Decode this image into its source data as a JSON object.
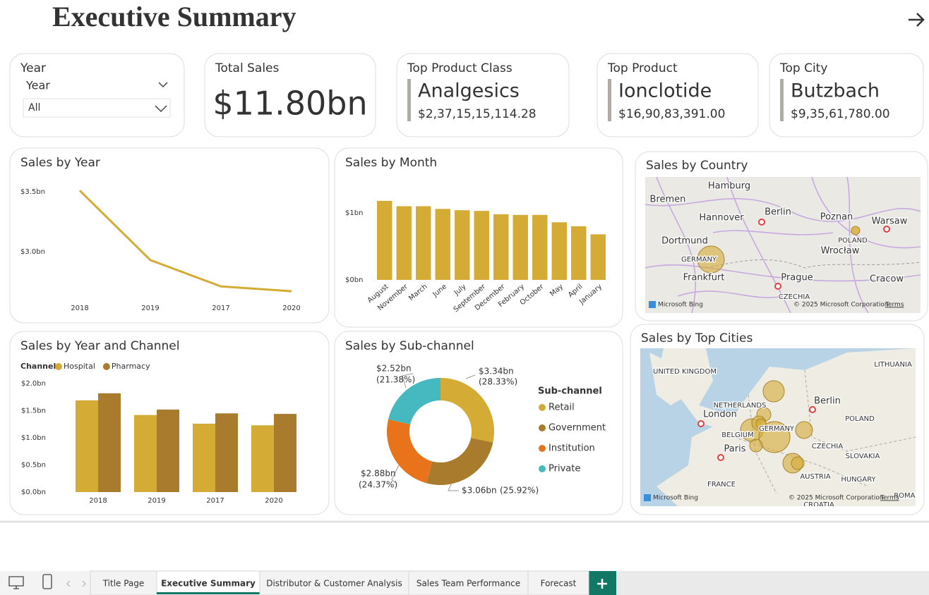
{
  "header": {
    "title": "Executive Summary"
  },
  "slicer": {
    "title": "Year",
    "dropdown_label": "Year",
    "value": "All"
  },
  "cards": [
    {
      "title": "Total Sales",
      "value": "$11.80bn"
    },
    {
      "title": "Top Product Class",
      "name": "Analgesics",
      "value": "$2,37,15,15,114.28"
    },
    {
      "title": "Top Product",
      "name": "Ionclotide",
      "value": "$16,90,83,391.00"
    },
    {
      "title": "Top City",
      "name": "Butzbach",
      "value": "$9,35,61,780.00"
    }
  ],
  "chart_data": [
    {
      "type": "line",
      "title": "Sales by Year",
      "categories": [
        "2018",
        "2019",
        "2017",
        "2020"
      ],
      "values": [
        3.51,
        2.93,
        2.71,
        2.67
      ],
      "color": "#d4ac35",
      "ylim": [
        2.6,
        3.55
      ],
      "yticks": [
        {
          "value": 3.0,
          "label": "$3.0bn"
        },
        {
          "value": 3.5,
          "label": "$3.5bn"
        }
      ]
    },
    {
      "type": "bar",
      "title": "Sales by Month",
      "categories": [
        "August",
        "November",
        "March",
        "June",
        "July",
        "September",
        "December",
        "February",
        "October",
        "May",
        "April",
        "January"
      ],
      "values": [
        1.18,
        1.1,
        1.1,
        1.06,
        1.04,
        1.03,
        0.98,
        0.97,
        0.97,
        0.86,
        0.8,
        0.68
      ],
      "color": "#d4ac35",
      "ylim": [
        0,
        1.28
      ],
      "yticks": [
        {
          "value": 0,
          "label": "$0bn"
        },
        {
          "value": 1,
          "label": "$1bn"
        }
      ]
    },
    {
      "type": "bar",
      "title": "Sales by Year and Channel",
      "legend_title": "Channel",
      "categories": [
        "2018",
        "2019",
        "2017",
        "2020"
      ],
      "series": [
        {
          "name": "Hospital",
          "color": "#d4ac35",
          "values": [
            1.69,
            1.42,
            1.26,
            1.23
          ]
        },
        {
          "name": "Pharmacy",
          "color": "#a87c2c",
          "values": [
            1.82,
            1.52,
            1.45,
            1.44
          ]
        }
      ],
      "ylim": [
        0,
        2.05
      ],
      "yticks": [
        {
          "value": 0,
          "label": "$0.0bn"
        },
        {
          "value": 0.5,
          "label": "$0.5bn"
        },
        {
          "value": 1.0,
          "label": "$1.0bn"
        },
        {
          "value": 1.5,
          "label": "$1.5bn"
        },
        {
          "value": 2.0,
          "label": "$2.0bn"
        }
      ]
    },
    {
      "type": "donut",
      "title": "Sales by Sub-channel",
      "legend_title": "Sub-channel",
      "categories": [
        "Retail",
        "Government",
        "Institution",
        "Private"
      ],
      "values": [
        3.34,
        3.06,
        2.88,
        2.52
      ],
      "value_labels": [
        "$3.34bn",
        "$3.06bn",
        "$2.88bn",
        "$2.52bn"
      ],
      "share_labels": [
        "(28.33%)",
        "(25.92%)",
        "(24.37%)",
        "(21.38%)"
      ],
      "colors": [
        "#d4ac35",
        "#a87c2c",
        "#e8731a",
        "#45b8c0"
      ]
    }
  ],
  "maps": [
    {
      "title": "Sales by Country",
      "labels": [
        "Hamburg",
        "Bremen",
        "Hannover",
        "Berlin",
        "Poznan",
        "Warsaw",
        "Dortmund",
        "POLAND",
        "Wrocław",
        "GERMANY",
        "Frankfurt",
        "Prague",
        "Cracow",
        "CZECHIA"
      ],
      "logo": "Microsoft Bing",
      "attribution": "© 2025 Microsoft Corporation",
      "terms": "Terms"
    },
    {
      "title": "Sales by Top Cities",
      "labels": [
        "UNITED KINGDOM",
        "LITHUANIA",
        "London",
        "NETHERLANDS",
        "Berlin",
        "POLAND",
        "BELGIUM",
        "GERMANY",
        "Paris",
        "CZECHIA",
        "SLOVAKIA",
        "AUSTRIA",
        "HUNGARY",
        "FRANCE",
        "ROMANIA",
        "CROATIA"
      ],
      "logo": "Microsoft Bing",
      "attribution": "© 2025 Microsoft Corporation",
      "terms": "Terms"
    }
  ],
  "tabs": [
    "Title Page",
    "Executive Summary",
    "Distributor & Customer Analysis",
    "Sales Team Performance",
    "Forecast"
  ],
  "active_tab": 1
}
